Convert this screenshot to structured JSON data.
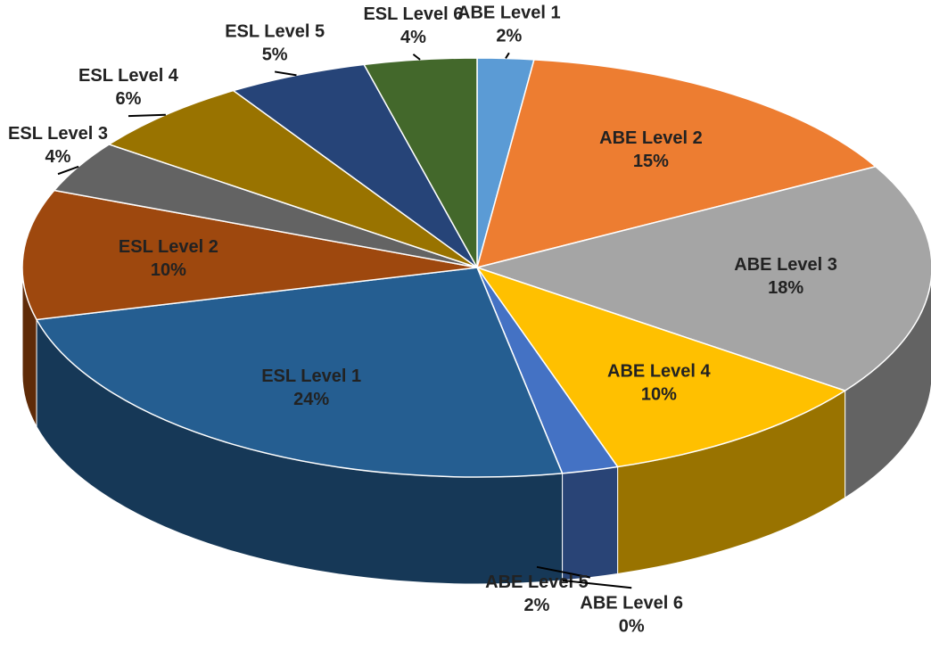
{
  "chart_data": {
    "type": "pie",
    "categories": [
      "ABE Level 1",
      "ABE Level 2",
      "ABE Level 3",
      "ABE Level 4",
      "ABE Level 5",
      "ABE Level 6",
      "ESL Level 1",
      "ESL Level 2",
      "ESL Level 3",
      "ESL Level 4",
      "ESL Level 5",
      "ESL Level 6"
    ],
    "values": [
      2,
      15,
      18,
      10,
      2,
      0,
      24,
      10,
      4,
      6,
      5,
      4
    ],
    "value_labels": [
      "2%",
      "15%",
      "18%",
      "10%",
      "2%",
      "0%",
      "24%",
      "10%",
      "4%",
      "6%",
      "5%",
      "4%"
    ],
    "colors": [
      "#5b9bd5",
      "#ed7d31",
      "#a5a5a5",
      "#ffc000",
      "#4472c4",
      "#70ad47",
      "#255e91",
      "#9e480e",
      "#636363",
      "#997300",
      "#264478",
      "#43682b"
    ]
  }
}
